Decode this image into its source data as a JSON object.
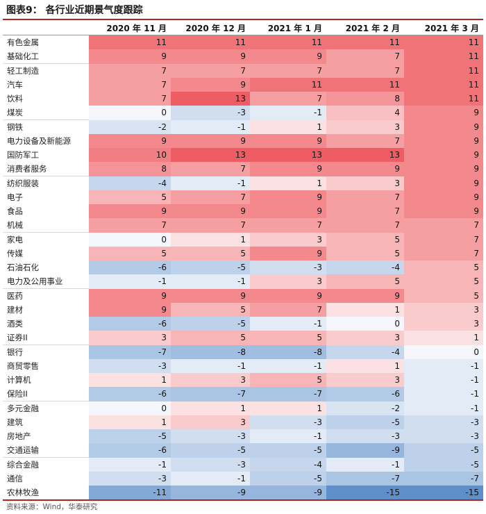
{
  "title": "图表9：  各行业近期景气度跟踪",
  "columns": [
    "2020 年 11 月",
    "2020 年 12 月",
    "2021 年 1 月",
    "2021 年 2 月",
    "2021 年 3 月"
  ],
  "rows": [
    {
      "label": "有色金属",
      "values": [
        11,
        11,
        11,
        11,
        11
      ]
    },
    {
      "label": "基础化工",
      "values": [
        9,
        9,
        9,
        7,
        11
      ]
    },
    {
      "label": "轻工制造",
      "values": [
        7,
        7,
        7,
        7,
        11
      ]
    },
    {
      "label": "汽车",
      "values": [
        7,
        9,
        11,
        11,
        11
      ]
    },
    {
      "label": "饮料",
      "values": [
        7,
        13,
        7,
        8,
        11
      ]
    },
    {
      "label": "煤炭",
      "values": [
        0,
        -3,
        -1,
        4,
        9
      ]
    },
    {
      "label": "钢铁",
      "values": [
        -2,
        -1,
        1,
        3,
        9
      ]
    },
    {
      "label": "电力设备及新能源",
      "values": [
        9,
        9,
        9,
        7,
        9
      ]
    },
    {
      "label": "国防军工",
      "values": [
        10,
        13,
        13,
        13,
        9
      ]
    },
    {
      "label": "消费者服务",
      "values": [
        8,
        7,
        9,
        9,
        9
      ]
    },
    {
      "label": "纺织服装",
      "values": [
        -4,
        -1,
        1,
        3,
        9
      ]
    },
    {
      "label": "电子",
      "values": [
        5,
        7,
        9,
        7,
        9
      ]
    },
    {
      "label": "食品",
      "values": [
        9,
        9,
        9,
        7,
        9
      ]
    },
    {
      "label": "机械",
      "values": [
        7,
        7,
        7,
        7,
        7
      ]
    },
    {
      "label": "家电",
      "values": [
        0,
        1,
        3,
        5,
        7
      ]
    },
    {
      "label": "传媒",
      "values": [
        5,
        5,
        9,
        5,
        7
      ]
    },
    {
      "label": "石油石化",
      "values": [
        -6,
        -5,
        -3,
        -4,
        5
      ]
    },
    {
      "label": "电力及公用事业",
      "values": [
        -1,
        -1,
        3,
        5,
        5
      ]
    },
    {
      "label": "医药",
      "values": [
        9,
        9,
        9,
        9,
        5
      ]
    },
    {
      "label": "建材",
      "values": [
        9,
        5,
        7,
        1,
        3
      ]
    },
    {
      "label": "酒类",
      "values": [
        -6,
        -5,
        -1,
        0,
        3
      ]
    },
    {
      "label": "证券II",
      "values": [
        3,
        5,
        5,
        3,
        1
      ]
    },
    {
      "label": "银行",
      "values": [
        -7,
        -8,
        -8,
        -4,
        0
      ]
    },
    {
      "label": "商贸零售",
      "values": [
        -3,
        -1,
        -1,
        1,
        -1
      ]
    },
    {
      "label": "计算机",
      "values": [
        1,
        3,
        5,
        3,
        -1
      ]
    },
    {
      "label": "保险II",
      "values": [
        -6,
        -7,
        -7,
        -6,
        -1
      ]
    },
    {
      "label": "多元金融",
      "values": [
        0,
        1,
        1,
        -2,
        -1
      ]
    },
    {
      "label": "建筑",
      "values": [
        1,
        3,
        -3,
        -5,
        -3
      ]
    },
    {
      "label": "房地产",
      "values": [
        -5,
        -3,
        -1,
        -3,
        -3
      ]
    },
    {
      "label": "交通运输",
      "values": [
        -6,
        -5,
        -5,
        -9,
        -5
      ]
    },
    {
      "label": "综合金融",
      "values": [
        -1,
        -3,
        -4,
        -1,
        -5
      ]
    },
    {
      "label": "通信",
      "values": [
        -3,
        -1,
        -5,
        -7,
        -7
      ]
    },
    {
      "label": "农林牧渔",
      "values": [
        -11,
        -9,
        -9,
        -15,
        -15
      ]
    }
  ],
  "source": "资料来源：Wind，华泰研究",
  "colors": {
    "rule": "#b5231e",
    "positive": "#ee5d63",
    "negative": "#5f8fcb",
    "neutral": "#ffffff"
  }
}
